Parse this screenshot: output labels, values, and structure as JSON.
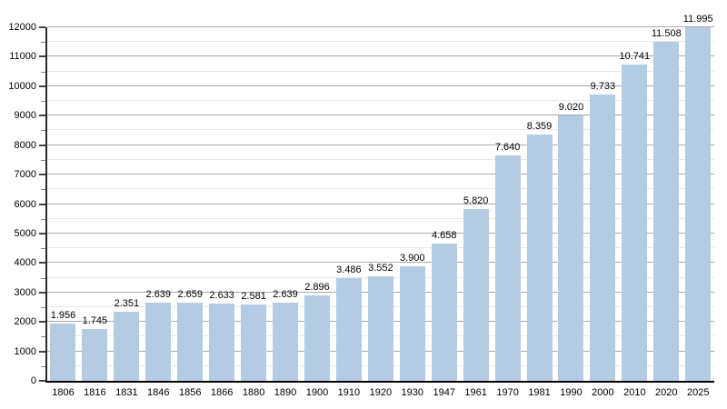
{
  "chart_data": {
    "type": "bar",
    "title": "",
    "xlabel": "",
    "ylabel": "",
    "categories": [
      "1806",
      "1816",
      "1831",
      "1846",
      "1856",
      "1866",
      "1880",
      "1890",
      "1900",
      "1910",
      "1920",
      "1930",
      "1947",
      "1961",
      "1970",
      "1981",
      "1990",
      "2000",
      "2010",
      "2020",
      "2025"
    ],
    "values": [
      1956,
      1745,
      2351,
      2639,
      2659,
      2633,
      2581,
      2639,
      2896,
      3486,
      3552,
      3900,
      4658,
      5820,
      7640,
      8359,
      9020,
      9733,
      10741,
      11508,
      11995
    ],
    "value_labels": [
      "1.956",
      "1.745",
      "2.351",
      "2.639",
      "2.659",
      "2.633",
      "2.581",
      "2.639",
      "2.896",
      "3.486",
      "3.552",
      "3.900",
      "4.658",
      "5.820",
      "7.640",
      "8.359",
      "9.020",
      "9.733",
      "10.741",
      "11.508",
      "11.995"
    ],
    "ylim": [
      0,
      12000
    ],
    "y_major_step": 1000,
    "y_minor_step": 500,
    "y_tick_labels": [
      "0",
      "1000",
      "2000",
      "3000",
      "4000",
      "5000",
      "6000",
      "7000",
      "8000",
      "9000",
      "10000",
      "11000",
      "12000"
    ],
    "grid": true,
    "legend": false,
    "bar_color": "#b3cbe3",
    "major_grid_color": "#aaaaaa",
    "minor_grid_color": "#e8e8e8",
    "axis_color": "#000000",
    "text_color": "#000000"
  }
}
